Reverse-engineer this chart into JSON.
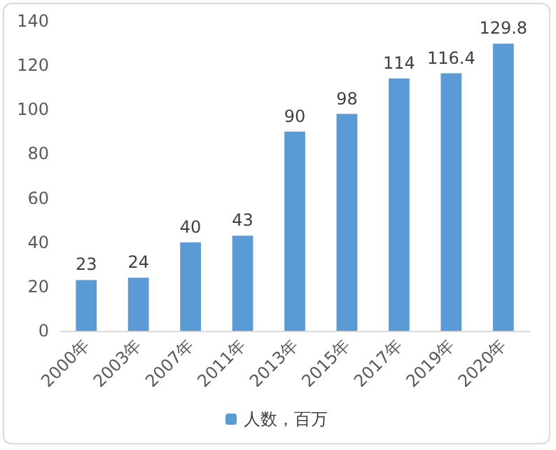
{
  "chart_data": {
    "type": "bar",
    "categories": [
      "2000年",
      "2003年",
      "2007年",
      "2011年",
      "2013年",
      "2015年",
      "2017年",
      "2019年",
      "2020年"
    ],
    "series": [
      {
        "name": "人数，百万",
        "color": "#5b9bd5",
        "values": [
          23,
          24,
          40,
          43,
          90,
          98,
          114,
          116.4,
          129.8
        ]
      }
    ],
    "ylim": [
      0,
      140
    ],
    "yticks": [
      0,
      20,
      40,
      60,
      80,
      100,
      120,
      140
    ],
    "grid": false,
    "legend": "bottom",
    "data_labels": true
  }
}
